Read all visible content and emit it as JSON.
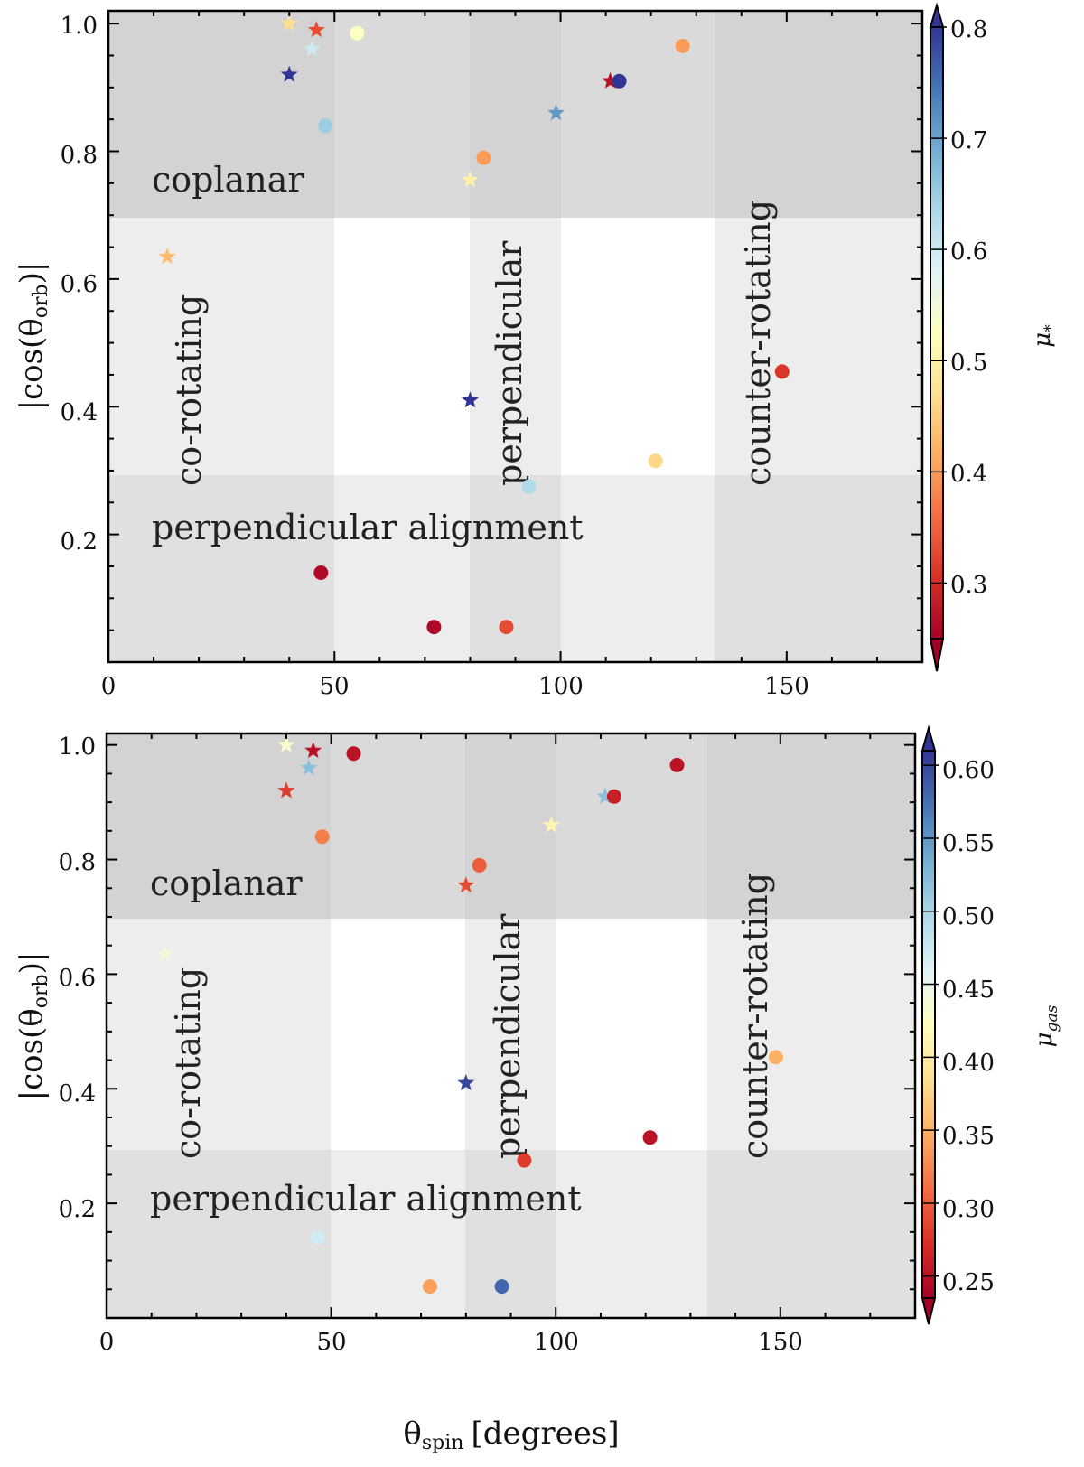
{
  "chart_data": [
    {
      "type": "scatter",
      "id": "top",
      "xlabel": "θ",
      "xlabel_sub": "spin",
      "xlabel_unit": "[degrees]",
      "xlabel_shown": false,
      "ylabel": "|cos(θ",
      "ylabel_sub": "orb",
      "ylabel_end": ")|",
      "xlim": [
        0,
        180
      ],
      "ylim": [
        0.0,
        1.02
      ],
      "xticks": [
        0,
        50,
        100,
        150
      ],
      "yticks": [
        0.2,
        0.4,
        0.6,
        0.8,
        1.0
      ],
      "xtick_labels": [
        "0",
        "50",
        "100",
        "150"
      ],
      "ytick_labels": [
        "0.2",
        "0.4",
        "0.6",
        "0.8",
        "1.0"
      ],
      "region_labels": {
        "coplanar": "coplanar",
        "perp_alignment": "perpendicular alignment",
        "co_rotating": "co-rotating",
        "perpendicular": "perpendicular",
        "counter_rotating": "counter-rotating"
      },
      "colorbar": {
        "symbol": "μ",
        "sub": "*",
        "min": 0.25,
        "max": 0.8,
        "ticks": [
          0.3,
          0.4,
          0.5,
          0.6,
          0.7,
          0.8
        ],
        "tick_labels": [
          "0.3",
          "0.4",
          "0.5",
          "0.6",
          "0.7",
          "0.8"
        ]
      },
      "points": [
        {
          "marker": "star",
          "x": 40,
          "y": 1.0,
          "c": 0.47
        },
        {
          "marker": "star",
          "x": 46,
          "y": 0.99,
          "c": 0.33
        },
        {
          "marker": "star",
          "x": 45,
          "y": 0.96,
          "c": 0.6
        },
        {
          "marker": "star",
          "x": 40,
          "y": 0.92,
          "c": 0.8
        },
        {
          "marker": "circle",
          "x": 55,
          "y": 0.985,
          "c": 0.53
        },
        {
          "marker": "circle",
          "x": 48,
          "y": 0.84,
          "c": 0.65
        },
        {
          "marker": "circle",
          "x": 127,
          "y": 0.965,
          "c": 0.4
        },
        {
          "marker": "star",
          "x": 111,
          "y": 0.91,
          "c": 0.27
        },
        {
          "marker": "circle",
          "x": 113,
          "y": 0.91,
          "c": 0.8
        },
        {
          "marker": "star",
          "x": 99,
          "y": 0.86,
          "c": 0.71
        },
        {
          "marker": "circle",
          "x": 83,
          "y": 0.79,
          "c": 0.4
        },
        {
          "marker": "star",
          "x": 80,
          "y": 0.755,
          "c": 0.5
        },
        {
          "marker": "star",
          "x": 13,
          "y": 0.635,
          "c": 0.43
        },
        {
          "marker": "star",
          "x": 80,
          "y": 0.41,
          "c": 0.8
        },
        {
          "marker": "circle",
          "x": 149,
          "y": 0.455,
          "c": 0.31
        },
        {
          "marker": "circle",
          "x": 121,
          "y": 0.315,
          "c": 0.46
        },
        {
          "marker": "circle",
          "x": 93,
          "y": 0.275,
          "c": 0.63
        },
        {
          "marker": "circle",
          "x": 47,
          "y": 0.14,
          "c": 0.26
        },
        {
          "marker": "circle",
          "x": 72,
          "y": 0.055,
          "c": 0.26
        },
        {
          "marker": "circle",
          "x": 88,
          "y": 0.055,
          "c": 0.33
        }
      ]
    },
    {
      "type": "scatter",
      "id": "bottom",
      "xlabel": "θ",
      "xlabel_sub": "spin",
      "xlabel_unit": "[degrees]",
      "xlabel_shown": true,
      "ylabel": "|cos(θ",
      "ylabel_sub": "orb",
      "ylabel_end": ")|",
      "xlim": [
        0,
        180
      ],
      "ylim": [
        0.0,
        1.02
      ],
      "xticks": [
        0,
        50,
        100,
        150
      ],
      "yticks": [
        0.2,
        0.4,
        0.6,
        0.8,
        1.0
      ],
      "xtick_labels": [
        "0",
        "50",
        "100",
        "150"
      ],
      "ytick_labels": [
        "0.2",
        "0.4",
        "0.6",
        "0.8",
        "1.0"
      ],
      "region_labels": {
        "coplanar": "coplanar",
        "perp_alignment": "perpendicular alignment",
        "co_rotating": "co-rotating",
        "perpendicular": "perpendicular",
        "counter_rotating": "counter-rotating"
      },
      "colorbar": {
        "symbol": "μ",
        "sub": "gas",
        "min": 0.235,
        "max": 0.61,
        "ticks": [
          0.25,
          0.3,
          0.35,
          0.4,
          0.45,
          0.5,
          0.55,
          0.6
        ],
        "tick_labels": [
          "0.25",
          "0.30",
          "0.35",
          "0.40",
          "0.45",
          "0.50",
          "0.55",
          "0.60"
        ]
      },
      "points": [
        {
          "marker": "star",
          "x": 40,
          "y": 1.0,
          "c": 0.43
        },
        {
          "marker": "star",
          "x": 46,
          "y": 0.99,
          "c": 0.25
        },
        {
          "marker": "star",
          "x": 45,
          "y": 0.96,
          "c": 0.52
        },
        {
          "marker": "star",
          "x": 40,
          "y": 0.92,
          "c": 0.28
        },
        {
          "marker": "circle",
          "x": 55,
          "y": 0.985,
          "c": 0.25
        },
        {
          "marker": "circle",
          "x": 48,
          "y": 0.84,
          "c": 0.32
        },
        {
          "marker": "circle",
          "x": 127,
          "y": 0.965,
          "c": 0.25
        },
        {
          "marker": "star",
          "x": 111,
          "y": 0.91,
          "c": 0.52
        },
        {
          "marker": "circle",
          "x": 113,
          "y": 0.91,
          "c": 0.26
        },
        {
          "marker": "star",
          "x": 99,
          "y": 0.86,
          "c": 0.41
        },
        {
          "marker": "circle",
          "x": 83,
          "y": 0.79,
          "c": 0.3
        },
        {
          "marker": "star",
          "x": 80,
          "y": 0.755,
          "c": 0.29
        },
        {
          "marker": "star",
          "x": 13,
          "y": 0.635,
          "c": 0.44
        },
        {
          "marker": "star",
          "x": 80,
          "y": 0.41,
          "c": 0.6
        },
        {
          "marker": "circle",
          "x": 149,
          "y": 0.455,
          "c": 0.35
        },
        {
          "marker": "circle",
          "x": 121,
          "y": 0.315,
          "c": 0.25
        },
        {
          "marker": "circle",
          "x": 93,
          "y": 0.275,
          "c": 0.28
        },
        {
          "marker": "circle",
          "x": 47,
          "y": 0.14,
          "c": 0.47
        },
        {
          "marker": "circle",
          "x": 72,
          "y": 0.055,
          "c": 0.34
        },
        {
          "marker": "circle",
          "x": 88,
          "y": 0.055,
          "c": 0.58
        }
      ]
    }
  ],
  "colors": {
    "shade_region": "#c2c2c2",
    "shade_band": "#e9e9e9",
    "colormap": [
      "#a50026",
      "#d73027",
      "#f46d43",
      "#fdae61",
      "#fee090",
      "#ffffbf",
      "#e0f3f8",
      "#abd9e9",
      "#74add1",
      "#4575b4",
      "#313695"
    ]
  }
}
